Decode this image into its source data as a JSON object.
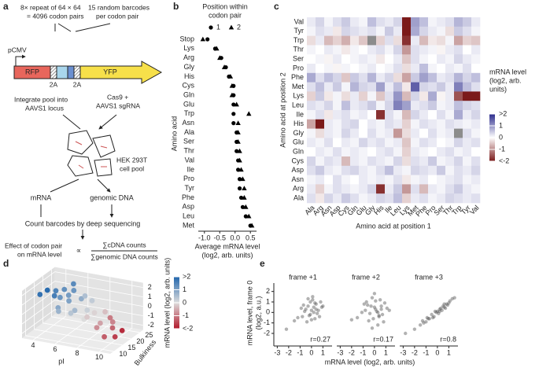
{
  "panel_labels": [
    "a",
    "b",
    "c",
    "d",
    "e"
  ],
  "panel_a": {
    "repeat_note": [
      "8× repeat of 64 × 64",
      "= 4096 codon pairs"
    ],
    "barcode_note": [
      "15 random barcodes",
      "per codon pair"
    ],
    "promoter": "pCMV",
    "gene_1": "RFP",
    "linker_1": "2A",
    "linker_2": "2A",
    "gene_2": "YFP",
    "integrate": [
      "Integrate pool into",
      "AAVS1 locus"
    ],
    "cas9": [
      "Cas9 +",
      "AAVS1 sgRNA"
    ],
    "cells": [
      "HEK 293T",
      "cell pool"
    ],
    "mrna": "mRNA",
    "gdna": "genomic DNA",
    "count": "Count barcodes by deep sequencing",
    "effect": [
      "Effect of codon pair",
      "on mRNA level"
    ],
    "proportional": "∝",
    "numerator": "∑cDNA counts",
    "denominator": "∑genomic DNA counts"
  },
  "chart_data": [
    {
      "type": "dot",
      "legend_title": [
        "Position within",
        "codon pair"
      ],
      "ylabel": "Amino acid",
      "xlabel": [
        "Average mRNA level",
        "(log2, arb. units)"
      ],
      "categories": [
        "Stop",
        "Lys",
        "Arg",
        "Gly",
        "His",
        "Cys",
        "Gln",
        "Glu",
        "Trp",
        "Asn",
        "Ala",
        "Ser",
        "Thr",
        "Val",
        "Ile",
        "Pro",
        "Tyr",
        "Phe",
        "Asp",
        "Leu",
        "Met"
      ],
      "series": [
        {
          "name": "1",
          "marker": "circle",
          "color": "#000000",
          "values": [
            -0.9,
            -0.65,
            -0.45,
            -0.3,
            -0.2,
            -0.05,
            -0.05,
            -0.05,
            -0.05,
            -0.05,
            0.05,
            0.05,
            0.05,
            0.1,
            0.1,
            0.15,
            0.15,
            0.2,
            0.25,
            0.35,
            0.5
          ]
        },
        {
          "name": "2",
          "marker": "triangle",
          "color": "#000000",
          "values": [
            -1.05,
            -0.6,
            -0.5,
            -0.35,
            -0.15,
            -0.1,
            -0.1,
            0.05,
            0.45,
            0.1,
            0.1,
            0.1,
            0.15,
            0.15,
            0.2,
            0.25,
            0.3,
            0.3,
            0.35,
            0.45,
            0.55
          ]
        }
      ],
      "xlim": [
        -1.2,
        0.7
      ],
      "xticks": [
        {
          "value": -1,
          "label": "-1.0"
        },
        -0.5,
        {
          "value": 0,
          "label": "0.0"
        },
        0.5
      ]
    },
    {
      "type": "heatmap",
      "xlabel": "Amino acid at position 1",
      "ylabel": "Amino acid at position 2",
      "x_categories": [
        "Ala",
        "Arg",
        "Asn",
        "Asp",
        "Cys",
        "Gln",
        "Glu",
        "Gly",
        "His",
        "Ile",
        "Leu",
        "Lys",
        "Met",
        "Phe",
        "Pro",
        "Ser",
        "Thr",
        "Trp",
        "Tyr",
        "Val"
      ],
      "y_categories": [
        "Val",
        "Tyr",
        "Trp",
        "Thr",
        "Ser",
        "Pro",
        "Phe",
        "Met",
        "Lys",
        "Leu",
        "Ile",
        "His",
        "Gly",
        "Glu",
        "Gln",
        "Cys",
        "Asp",
        "Asn",
        "Arg",
        "Ala"
      ],
      "values": [
        [
          0.2,
          0.4,
          0.1,
          0.3,
          0.5,
          0.2,
          0.1,
          0.6,
          0.3,
          0.2,
          0.4,
          -2,
          0.9,
          0.6,
          0.1,
          0.2,
          0.3,
          0.7,
          0.5,
          0.2
        ],
        [
          0.1,
          0.3,
          0.2,
          -0.2,
          0.4,
          0.3,
          0.2,
          0.3,
          0.1,
          0.5,
          0.2,
          -2,
          0.8,
          0.4,
          0.2,
          0.1,
          -0.3,
          0.5,
          0.3,
          0.1
        ],
        [
          -0.3,
          0.2,
          -0.6,
          -0.4,
          -0.7,
          -0.2,
          -0.5,
          null,
          -0.4,
          0.3,
          -0.3,
          -1.8,
          0.2,
          -0.6,
          -0.2,
          -0.3,
          0.1,
          -0.8,
          -0.4,
          -0.5
        ],
        [
          0.1,
          0,
          0.2,
          0.1,
          -0.2,
          0.1,
          0,
          0.2,
          0.3,
          0.1,
          0.4,
          -0.9,
          0.3,
          0.2,
          0.1,
          -0.1,
          0.2,
          0.3,
          0,
          0.2
        ],
        [
          0,
          0.1,
          -0.1,
          0.2,
          0,
          0.1,
          0.2,
          0.1,
          -0.2,
          0,
          0.2,
          -0.5,
          0.3,
          0.1,
          0,
          0.2,
          0.1,
          0.4,
          0.2,
          0.1
        ],
        [
          0.2,
          0,
          0.1,
          -0.1,
          0.1,
          0,
          0.1,
          0.2,
          0,
          0.1,
          0.3,
          -0.3,
          0.2,
          0.6,
          0.1,
          0,
          0.2,
          0.1,
          0.3,
          0
        ],
        [
          0.8,
          0.3,
          0.6,
          0.4,
          -0.5,
          0.5,
          0.3,
          0.7,
          0.2,
          0.4,
          -0.3,
          -0.8,
          0.5,
          0.9,
          0.6,
          0.2,
          0.3,
          0.7,
          0.4,
          0.6
        ],
        [
          0.3,
          0.6,
          0.2,
          0.5,
          0.1,
          0.7,
          0.4,
          0.3,
          0.9,
          0.2,
          0.6,
          -0.2,
          1.5,
          0.4,
          0.3,
          0.5,
          0.2,
          1.2,
          0.6,
          0.3
        ],
        [
          -0.4,
          0.5,
          -0.2,
          0.1,
          -0.3,
          0.2,
          -0.4,
          0.1,
          -0.5,
          0.3,
          1,
          -0.6,
          0.4,
          -0.2,
          0.8,
          -0.1,
          0.2,
          -1.5,
          -2,
          -2
        ],
        [
          0.3,
          0.2,
          0.4,
          0.1,
          0.6,
          0.2,
          0.3,
          0.5,
          0.1,
          0.4,
          1.2,
          0.9,
          0.2,
          0.3,
          0.5,
          0.1,
          0.2,
          0.6,
          0.4,
          0.3
        ],
        [
          0.1,
          0.3,
          -0.2,
          0.2,
          0.3,
          0.1,
          0.2,
          0,
          -1.8,
          0.3,
          0.1,
          -0.6,
          0.4,
          0.2,
          0,
          0.3,
          0.1,
          0.8,
          0.2,
          0.4
        ],
        [
          -0.8,
          -2,
          0.2,
          0.1,
          0.3,
          0.4,
          0,
          0.2,
          0.1,
          0.3,
          0.2,
          -0.4,
          0.1,
          0.3,
          0.2,
          0.1,
          0.3,
          0.2,
          0.1,
          0.2
        ],
        [
          0.1,
          -0.3,
          0.2,
          0.1,
          0.4,
          0.2,
          0,
          0.3,
          0.1,
          0.2,
          -0.9,
          -0.3,
          0.2,
          0,
          0.3,
          0.1,
          0.2,
          null,
          0.3,
          0.1
        ],
        [
          0.2,
          0.1,
          0.3,
          0,
          0.2,
          0.1,
          0.4,
          0.2,
          0.3,
          0.1,
          0.2,
          -0.5,
          0.1,
          0.3,
          0.2,
          0,
          0.1,
          0.4,
          0.2,
          0.3
        ],
        [
          0,
          0.2,
          0.1,
          0.3,
          0.1,
          0.2,
          0.1,
          0,
          0.2,
          0.3,
          0.1,
          -0.4,
          0.2,
          0.1,
          0,
          0.2,
          0.3,
          0.1,
          0.2,
          0
        ],
        [
          0.4,
          0.1,
          0.3,
          0.2,
          -0.6,
          0.2,
          0.1,
          0.3,
          0.2,
          0.1,
          0.4,
          -0.3,
          0.3,
          0.2,
          0.5,
          0.1,
          0.2,
          0.4,
          0.1,
          0.3
        ],
        [
          0.3,
          0.5,
          0.2,
          0.1,
          0.3,
          0.4,
          0.2,
          0.1,
          0.3,
          0.6,
          0.2,
          0.1,
          0.4,
          0.3,
          0.2,
          0.5,
          0.1,
          0.3,
          0.2,
          0.4
        ],
        [
          0.1,
          0.2,
          0,
          0.3,
          0.1,
          0,
          0.2,
          0.1,
          0.2,
          0.1,
          0.3,
          -0.2,
          0.1,
          0.2,
          0,
          0.1,
          0.2,
          0.3,
          0.1,
          0.2
        ],
        [
          0.2,
          -0.4,
          0.1,
          0.3,
          0.2,
          0.1,
          0.2,
          0.4,
          -1.8,
          0.2,
          0.5,
          -0.9,
          0.3,
          -0.6,
          0.2,
          0.1,
          0.3,
          0.5,
          0.2,
          0.1
        ],
        [
          0.3,
          -0.2,
          0.4,
          0.2,
          0.5,
          0.3,
          0.1,
          0.2,
          0.4,
          0.3,
          0.6,
          -0.4,
          0.2,
          0.3,
          0.1,
          0.2,
          0.4,
          0.3,
          0.2,
          0.3
        ]
      ],
      "missing_color": "#8c8c8c",
      "colorbar": {
        "title": [
          "mRNA level",
          "(log2, arb.",
          "units)"
        ],
        "lim": [
          -2,
          2
        ],
        "ticks": [
          {
            "value": 2,
            "label": ">2"
          },
          1,
          0,
          -1,
          {
            "value": -2,
            "label": "<-2"
          }
        ],
        "colors": [
          "#7b1a1a",
          "#ffffff",
          "#2b2b8c"
        ]
      }
    },
    {
      "type": "scatter3d",
      "xlabel": "pI",
      "ylabel": "Bulkiness",
      "x": [
        4,
        4.5,
        5,
        5.5,
        6,
        6.5,
        7,
        5,
        5.8,
        4.2,
        6.2,
        7.5,
        8,
        8.5,
        9,
        9.5,
        10,
        10.5,
        6,
        7,
        8,
        9,
        5.5,
        4.8,
        7.8,
        8.8,
        9.8,
        6.8,
        5.2,
        10.2
      ],
      "y": [
        12,
        18,
        14,
        22,
        16,
        20,
        13,
        25,
        11,
        15,
        24,
        17,
        12,
        21,
        15,
        19,
        11,
        14,
        10,
        23,
        18,
        13,
        19,
        21,
        15,
        22,
        17,
        12,
        16,
        20
      ],
      "z": [
        1.8,
        1.5,
        1.6,
        1.2,
        1,
        0.8,
        0.6,
        1.4,
        0.9,
        1.9,
        0.5,
        0.2,
        0,
        -0.3,
        -0.6,
        -0.9,
        -1.3,
        -1.6,
        0.7,
        0.3,
        -0.1,
        -0.8,
        1.1,
        1.3,
        -0.2,
        -1,
        -1.2,
        0.4,
        1.2,
        -1.8
      ],
      "xlim": [
        3,
        11
      ],
      "xticks": [
        4,
        6,
        8,
        10
      ],
      "ylim": [
        8,
        27
      ],
      "yticks": [
        10,
        15,
        20,
        25
      ],
      "zlim": [
        -2.5,
        2.5
      ],
      "zticks": [
        -2,
        -1,
        0,
        1,
        2
      ],
      "colorbar": {
        "title": "mRNA level (log2, arb. units)",
        "lim": [
          -2,
          2
        ],
        "ticks": [
          {
            "value": 2,
            "label": ">2"
          },
          1,
          0,
          -1,
          {
            "value": -2,
            "label": "<-2"
          }
        ],
        "colors": [
          "#b2182b",
          "#dddddd",
          "#2166ac"
        ]
      }
    },
    {
      "type": "scatter_panels",
      "xlabel": "mRNA level (log2, arb. units)",
      "ylabel": [
        "mRNA level, frame 0",
        "(log2, a.u.)"
      ],
      "color": "#555555",
      "xlim": [
        -3.3,
        1.8
      ],
      "xticks": [
        -3,
        -2,
        -1,
        0,
        1
      ],
      "ylim": [
        -3.2,
        2.8
      ],
      "yticks": [
        -2,
        -1,
        0,
        1,
        2
      ],
      "panels": [
        {
          "title": "frame +1",
          "annotation": "r=0.27",
          "x": [
            -0.5,
            0.2,
            -0.1,
            0.4,
            -0.8,
            0.1,
            0.6,
            -0.3,
            0,
            -1.2,
            0.3,
            -0.6,
            0.8,
            -0.2,
            0.5,
            -0.9,
            0.1,
            -0.4,
            1,
            -1.5,
            0.2,
            -0.1,
            0.7,
            -0.7,
            0.4,
            -2.2,
            0,
            0.3,
            -0.3,
            0.9
          ],
          "y": [
            0.3,
            0.5,
            -0.2,
            0.8,
            -0.4,
            1.2,
            0.2,
            0.6,
            -0.7,
            -0.5,
            0.9,
            0.1,
            1,
            -0.3,
            -0.1,
            0.4,
            1.5,
            -0.9,
            0.6,
            -0.8,
            0,
            1,
            -0.4,
            0.7,
            0.3,
            -1.6,
            0.2,
            -0.6,
            1.3,
            0.5
          ]
        },
        {
          "title": "frame +2",
          "annotation": "r=0.17",
          "x": [
            -0.3,
            0.4,
            -0.8,
            0.1,
            0.6,
            -0.5,
            0,
            0.9,
            -1.1,
            0.3,
            -0.2,
            0.7,
            -0.6,
            0.2,
            -1.5,
            0.5,
            -0.1,
            1.1,
            -0.4,
            0,
            0.8,
            -0.9,
            0.3,
            -0.2,
            0.6,
            -2,
            0.1,
            0.4,
            -0.7,
            1.3
          ],
          "y": [
            0.6,
            -0.4,
            0.2,
            1.1,
            0.3,
            -0.8,
            0.5,
            0.9,
            0,
            -1.2,
            1.4,
            -0.2,
            0.7,
            0.1,
            -0.5,
            1.2,
            -0.6,
            0.4,
            -0.1,
            1.8,
            -0.9,
            0.8,
            0,
            -1.5,
            0.6,
            -0.7,
            0.3,
            -0.3,
            1,
            0.2
          ]
        },
        {
          "title": "frame +3",
          "annotation": "r=0.8",
          "x": [
            -1.5,
            -0.8,
            -0.3,
            0.2,
            0.6,
            1,
            -1.2,
            -0.5,
            0,
            0.4,
            0.8,
            -2,
            -1,
            -0.2,
            0.3,
            0.7,
            1.3,
            -0.7,
            0.1,
            0.5,
            -2.8,
            -0.4,
            0.9,
            -1.3,
            0.2,
            1.1,
            -0.1,
            0.6,
            -0.9,
            1.5
          ],
          "y": [
            -1.2,
            -0.6,
            -0.4,
            0.3,
            0.5,
            0.9,
            -1,
            -0.2,
            0.1,
            0.2,
            0.8,
            -1.6,
            -0.9,
            0.1,
            0.4,
            0.4,
            1.3,
            -0.6,
            -0.1,
            0.6,
            -2,
            -0.5,
            0.7,
            -0.8,
            0.1,
            1.1,
            0,
            0.8,
            -0.5,
            1.4
          ]
        }
      ]
    }
  ]
}
